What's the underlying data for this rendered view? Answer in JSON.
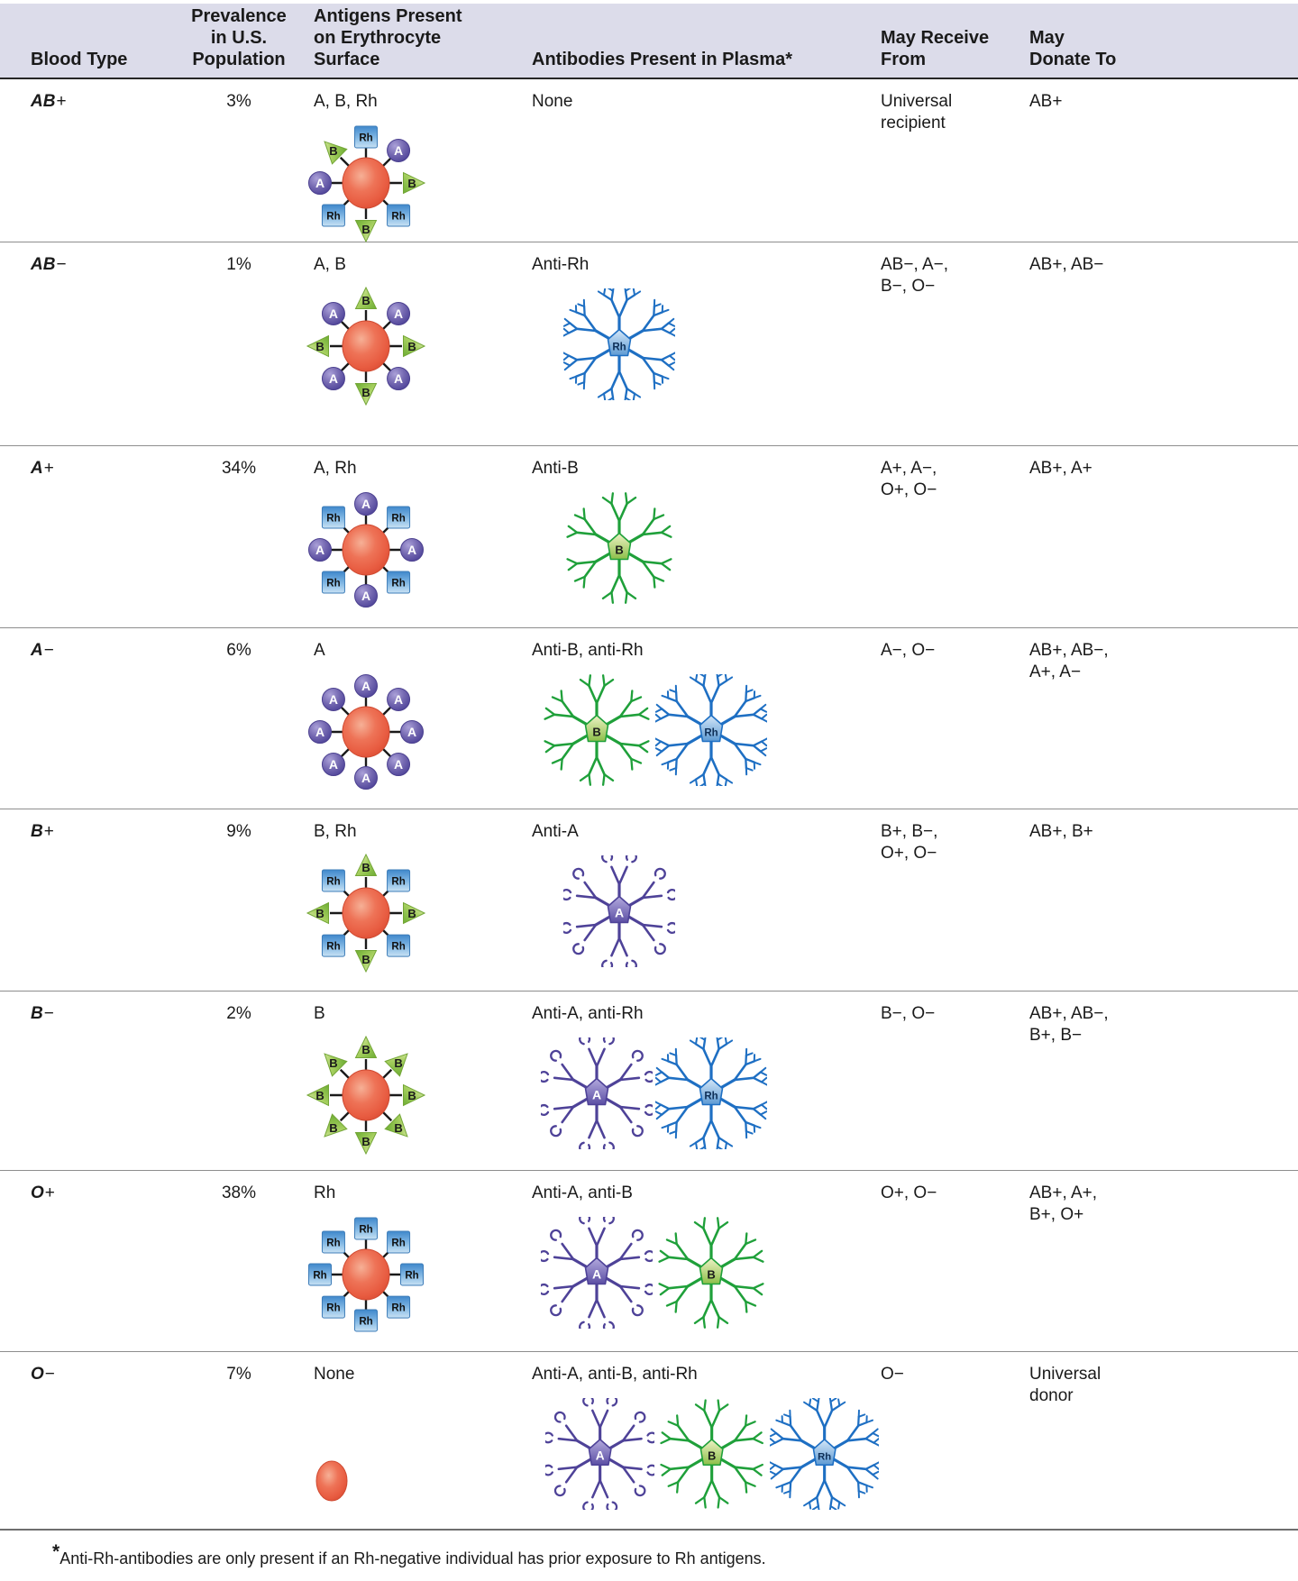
{
  "table": {
    "headers": {
      "blood_type": "Blood Type",
      "prevalence": [
        "Prevalence",
        "in U.S.",
        "Population"
      ],
      "antigens": [
        "Antigens Present",
        "on Erythrocyte",
        "Surface"
      ],
      "antibodies": "Antibodies Present in Plasma*",
      "receive": [
        "May Receive",
        "From"
      ],
      "donate": [
        "May",
        "Donate To"
      ]
    },
    "rows": [
      {
        "type_letters": "AB",
        "type_sign": "+",
        "prevalence": "3%",
        "antigens_label": "A, B, Rh",
        "antibodies_label": "None",
        "receive": [
          "Universal",
          "recipient"
        ],
        "donate": [
          "AB+"
        ],
        "cell_spokes": [
          "Rh",
          "A",
          "B",
          "Rh",
          "B",
          "Rh",
          "A",
          "B"
        ],
        "antibody_types": []
      },
      {
        "type_letters": "AB",
        "type_sign": "−",
        "prevalence": "1%",
        "antigens_label": "A, B",
        "antibodies_label": "Anti-Rh",
        "receive": [
          "AB−, A−,",
          "B−, O−"
        ],
        "donate": [
          "AB+, AB−"
        ],
        "cell_spokes": [
          "B",
          "A",
          "B",
          "A",
          "B",
          "A",
          "B",
          "A"
        ],
        "antibody_types": [
          "Rh"
        ]
      },
      {
        "type_letters": "A",
        "type_sign": "+",
        "prevalence": "34%",
        "antigens_label": "A, Rh",
        "antibodies_label": "Anti-B",
        "receive": [
          "A+, A−,",
          "O+, O−"
        ],
        "donate": [
          "AB+, A+"
        ],
        "cell_spokes": [
          "A",
          "Rh",
          "A",
          "Rh",
          "A",
          "Rh",
          "A",
          "Rh"
        ],
        "antibody_types": [
          "B"
        ]
      },
      {
        "type_letters": "A",
        "type_sign": "−",
        "prevalence": "6%",
        "antigens_label": "A",
        "antibodies_label": "Anti-B, anti-Rh",
        "receive": [
          "A−, O−"
        ],
        "donate": [
          "AB+, AB−,",
          "A+, A−"
        ],
        "cell_spokes": [
          "A",
          "A",
          "A",
          "A",
          "A",
          "A",
          "A",
          "A"
        ],
        "antibody_types": [
          "B",
          "Rh"
        ]
      },
      {
        "type_letters": "B",
        "type_sign": "+",
        "prevalence": "9%",
        "antigens_label": "B, Rh",
        "antibodies_label": "Anti-A",
        "receive": [
          "B+, B−,",
          "O+, O−"
        ],
        "donate": [
          "AB+, B+"
        ],
        "cell_spokes": [
          "B",
          "Rh",
          "B",
          "Rh",
          "B",
          "Rh",
          "B",
          "Rh"
        ],
        "antibody_types": [
          "A"
        ]
      },
      {
        "type_letters": "B",
        "type_sign": "−",
        "prevalence": "2%",
        "antigens_label": "B",
        "antibodies_label": "Anti-A, anti-Rh",
        "receive": [
          "B−, O−"
        ],
        "donate": [
          "AB+, AB−,",
          "B+, B−"
        ],
        "cell_spokes": [
          "B",
          "B",
          "B",
          "B",
          "B",
          "B",
          "B",
          "B"
        ],
        "antibody_types": [
          "A",
          "Rh"
        ]
      },
      {
        "type_letters": "O",
        "type_sign": "+",
        "prevalence": "38%",
        "antigens_label": "Rh",
        "antibodies_label": "Anti-A, anti-B",
        "receive": [
          "O+, O−"
        ],
        "donate": [
          "AB+, A+,",
          "B+, O+"
        ],
        "cell_spokes": [
          "Rh",
          "Rh",
          "Rh",
          "Rh",
          "Rh",
          "Rh",
          "Rh",
          "Rh"
        ],
        "antibody_types": [
          "A",
          "B"
        ]
      },
      {
        "type_letters": "O",
        "type_sign": "−",
        "prevalence": "7%",
        "antigens_label": "None",
        "antibodies_label": "Anti-A, anti-B, anti-Rh",
        "receive": [
          "O−"
        ],
        "donate": [
          "Universal",
          "donor"
        ],
        "cell_spokes": [],
        "antibody_types": [
          "A",
          "B",
          "Rh"
        ]
      }
    ],
    "footnote_star": "*",
    "footnote": "Anti-Rh-antibodies are only present if an Rh-negative individual has prior exposure to Rh antigens."
  },
  "colors": {
    "header_bg": "#dcdcea",
    "row_divider": "#8e8e8e",
    "rbc_fill": "#ec6a4e",
    "antigen_a": "#6a5ead",
    "antigen_b": "#8fc04a",
    "antigen_rh": "#5b9bd5",
    "antibody_a": "#4e4298",
    "antibody_b": "#1fa03a",
    "antibody_rh": "#1e6fc3"
  }
}
